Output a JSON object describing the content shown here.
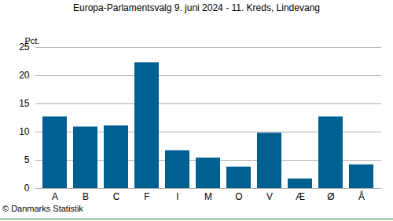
{
  "chart_data": {
    "type": "bar",
    "title": "Europa-Parlamentsvalg 9. juni 2024 - 11. Kreds, Lindevang",
    "y_label": "Pct.",
    "caption": "© Danmarks Statistik",
    "categories": [
      "A",
      "B",
      "C",
      "F",
      "I",
      "M",
      "O",
      "V",
      "Æ",
      "Ø",
      "Å"
    ],
    "values": [
      12.7,
      10.9,
      11.1,
      22.3,
      6.7,
      5.4,
      3.8,
      9.8,
      1.7,
      12.7,
      4.2
    ],
    "color": "#005f91",
    "ylim": [
      0,
      25
    ],
    "yticks": [
      0,
      5,
      10,
      15,
      20,
      25
    ],
    "grid": true
  }
}
